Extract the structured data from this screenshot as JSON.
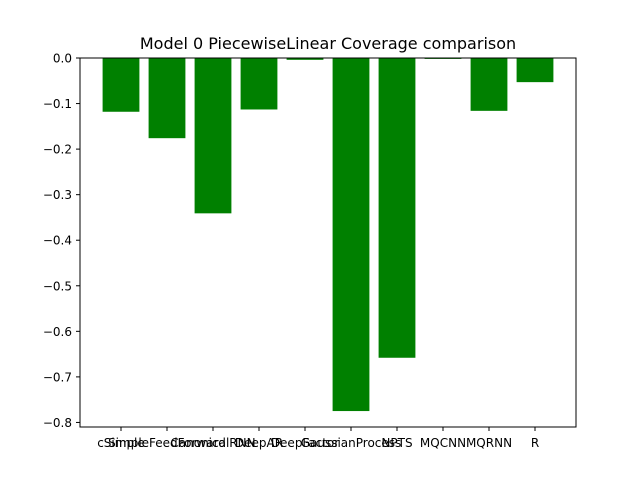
{
  "chart_data": {
    "type": "bar",
    "title": "Model 0 PiecewiseLinear Coverage comparison",
    "xlabel": "",
    "ylabel": "",
    "categories": [
      "cSimple",
      "SimpleFeedForward",
      "CanonicalRNN",
      "DeepAR",
      "DeepFactor",
      "GaussianProcess",
      "NPTS",
      "MQCNN",
      "MQRNN",
      "R"
    ],
    "values": [
      -0.118,
      -0.176,
      -0.341,
      -0.113,
      -0.004,
      -0.775,
      -0.658,
      -0.002,
      -0.116,
      -0.053
    ],
    "ylim": [
      -0.81,
      0.0
    ],
    "yticks": [
      0.0,
      -0.1,
      -0.2,
      -0.3,
      -0.4,
      -0.5,
      -0.6,
      -0.7,
      -0.8
    ],
    "ytick_labels": [
      "0.0",
      "−0.1",
      "−0.2",
      "−0.3",
      "−0.4",
      "−0.5",
      "−0.6",
      "−0.7",
      "−0.8"
    ],
    "bar_color": "#008000",
    "grid": false,
    "legend": "none"
  }
}
